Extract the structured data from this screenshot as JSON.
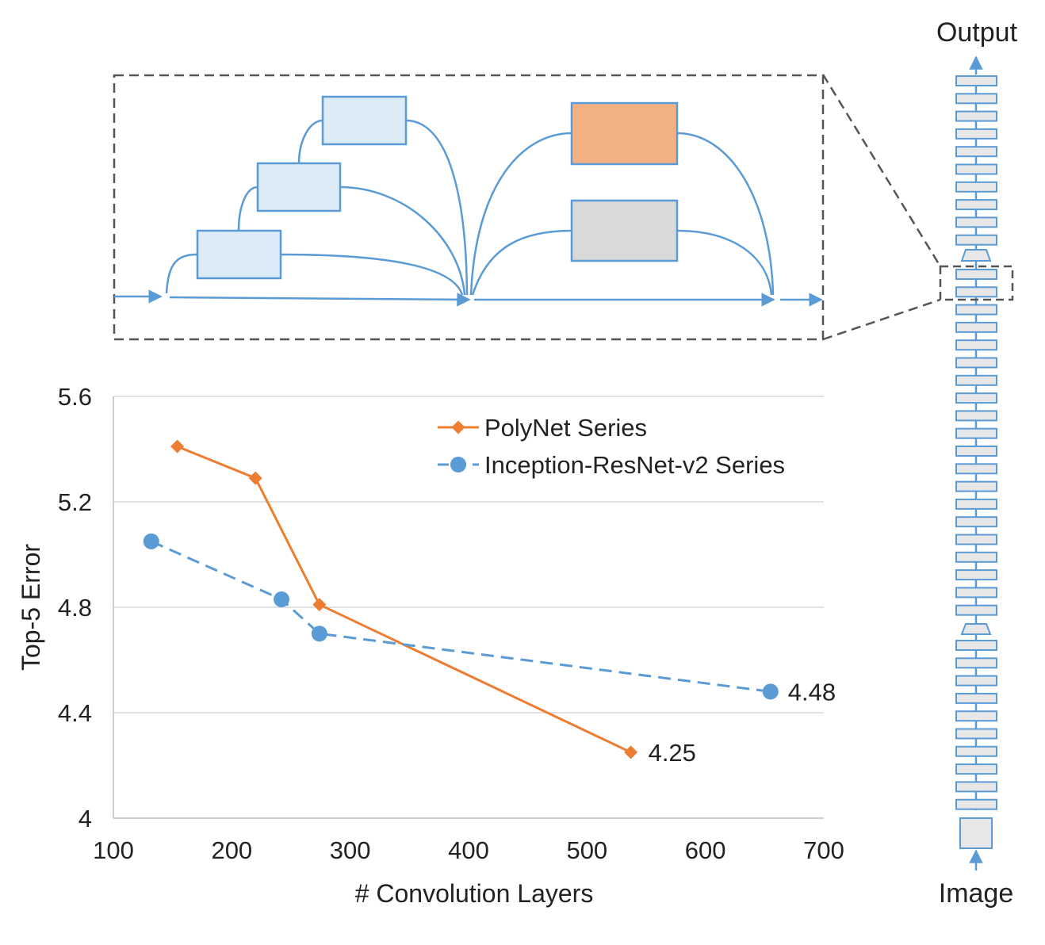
{
  "network": {
    "top_label": "Output",
    "bottom_label": "Image",
    "block_fill": "#e7e7e7",
    "stroke_color": "#5b9bd5"
  },
  "detail": {
    "box_colors": {
      "poly_boxes": "#ddebf7",
      "orange_box": "#f4b183",
      "gray_box": "#d9d9d9",
      "border": "#5b9bd5"
    }
  },
  "chart_data": {
    "type": "line",
    "xlabel": "# Convolution Layers",
    "ylabel": "Top-5 Error",
    "xlim": [
      100,
      700
    ],
    "ylim": [
      4,
      5.6
    ],
    "x_ticks": [
      "100",
      "200",
      "300",
      "400",
      "500",
      "600",
      "700"
    ],
    "y_ticks": [
      "4",
      "4.4",
      "4.8",
      "5.2",
      "5.6"
    ],
    "grid": "horizontal",
    "legend_position": "top-right",
    "series": [
      {
        "name": "PolyNet Series",
        "color": "#ed7d31",
        "marker": "diamond",
        "line_style": "solid",
        "points": [
          [
            154,
            5.41
          ],
          [
            220,
            5.29
          ],
          [
            274,
            4.81
          ],
          [
            537,
            4.25
          ]
        ],
        "end_label": "4.25"
      },
      {
        "name": "Inception-ResNet-v2 Series",
        "color": "#5b9bd5",
        "marker": "circle",
        "line_style": "dashed",
        "points": [
          [
            132,
            5.05
          ],
          [
            242,
            4.83
          ],
          [
            274,
            4.7
          ],
          [
            655,
            4.48
          ]
        ],
        "end_label": "4.48"
      }
    ]
  }
}
